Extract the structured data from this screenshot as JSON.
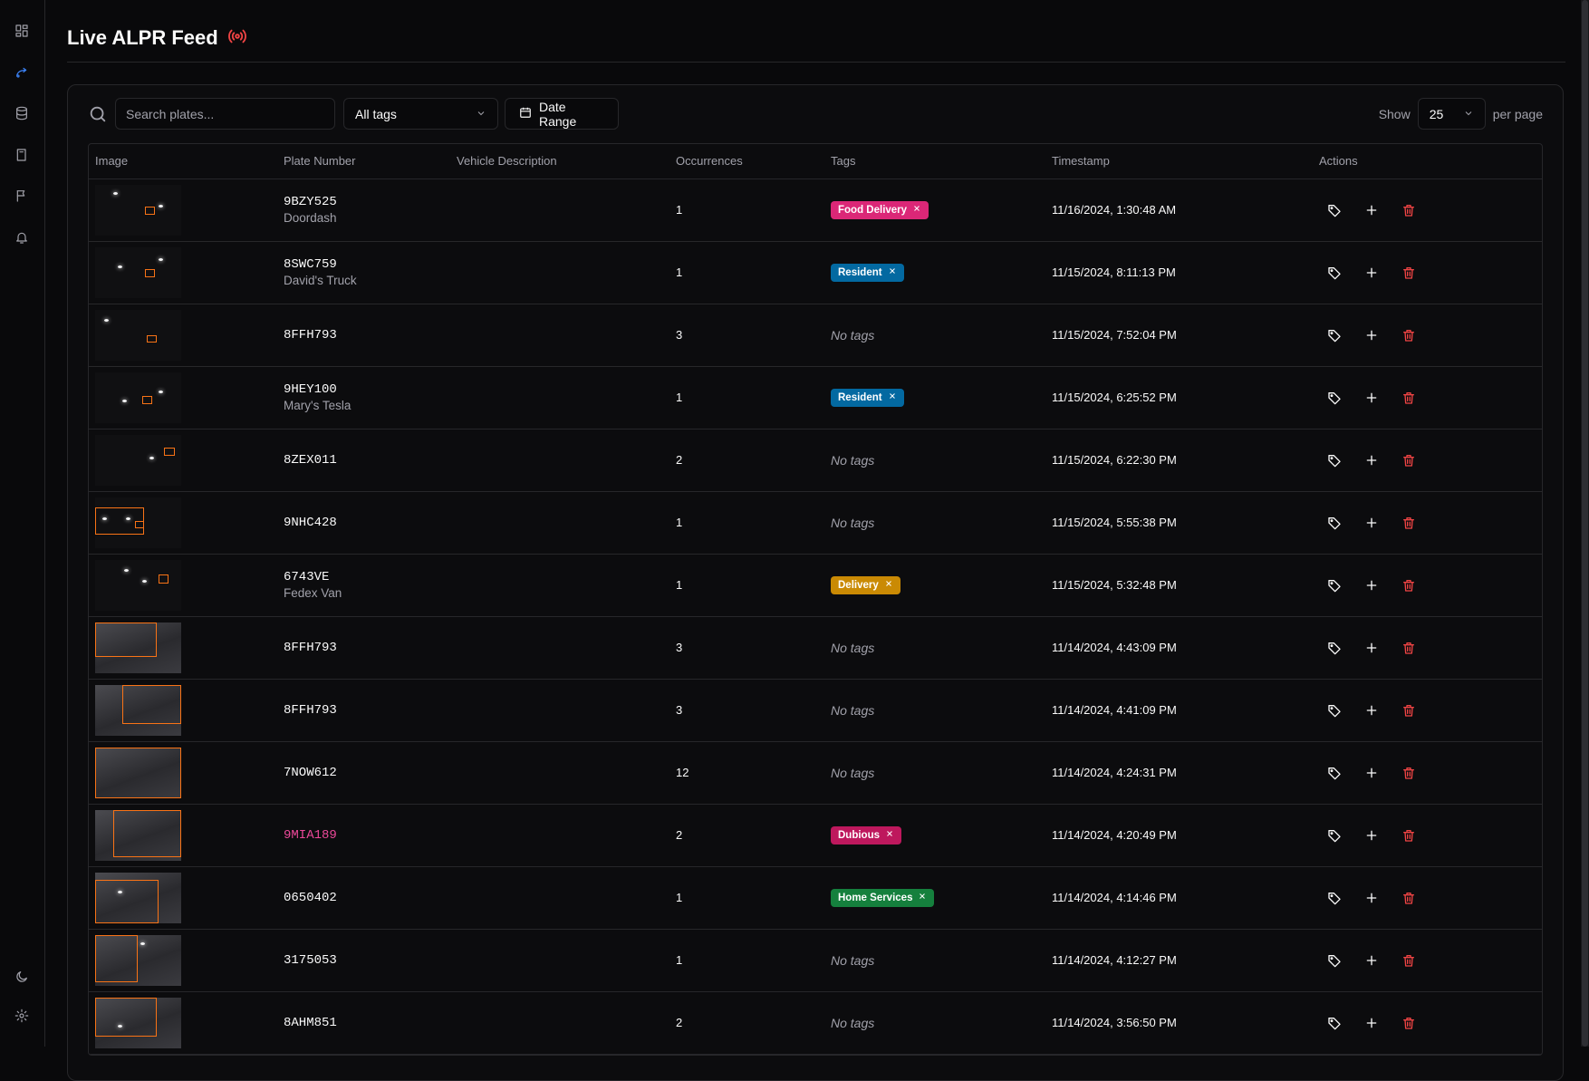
{
  "page": {
    "title": "Live ALPR Feed"
  },
  "sidebar": {
    "icons": [
      "dashboard-icon",
      "feed-icon",
      "database-icon",
      "book-icon",
      "flag-icon",
      "bell-icon",
      "moon-icon",
      "settings-icon"
    ]
  },
  "toolbar": {
    "search_placeholder": "Search plates...",
    "tag_filter": "All tags",
    "date_range": "Date Range",
    "show_label": "Show",
    "per_page_value": "25",
    "per_page_label": "per page"
  },
  "table": {
    "headers": [
      "Image",
      "Plate Number",
      "Vehicle Description",
      "Occurrences",
      "Tags",
      "Timestamp",
      "Actions"
    ],
    "no_tags_text": "No tags",
    "rows": [
      {
        "plate": "9BZY525",
        "nick": "Doordash",
        "occ": "1",
        "tag": "Food Delivery",
        "tag_color": "#db2777",
        "ts": "11/16/2024, 1:30:48 AM",
        "thumb": "dark"
      },
      {
        "plate": "8SWC759",
        "nick": "David's Truck",
        "occ": "1",
        "tag": "Resident",
        "tag_color": "#0369a1",
        "ts": "11/15/2024, 8:11:13 PM",
        "thumb": "dark"
      },
      {
        "plate": "8FFH793",
        "nick": "",
        "occ": "3",
        "tag": "",
        "tag_color": "",
        "ts": "11/15/2024, 7:52:04 PM",
        "thumb": "dark"
      },
      {
        "plate": "9HEY100",
        "nick": "Mary's Tesla",
        "occ": "1",
        "tag": "Resident",
        "tag_color": "#0369a1",
        "ts": "11/15/2024, 6:25:52 PM",
        "thumb": "dark"
      },
      {
        "plate": "8ZEX011",
        "nick": "",
        "occ": "2",
        "tag": "",
        "tag_color": "",
        "ts": "11/15/2024, 6:22:30 PM",
        "thumb": "dark"
      },
      {
        "plate": "9NHC428",
        "nick": "",
        "occ": "1",
        "tag": "",
        "tag_color": "",
        "ts": "11/15/2024, 5:55:38 PM",
        "thumb": "dark"
      },
      {
        "plate": "6743VE",
        "nick": "Fedex Van",
        "occ": "1",
        "tag": "Delivery",
        "tag_color": "#ca8a04",
        "ts": "11/15/2024, 5:32:48 PM",
        "thumb": "dark"
      },
      {
        "plate": "8FFH793",
        "nick": "",
        "occ": "3",
        "tag": "",
        "tag_color": "",
        "ts": "11/14/2024, 4:43:09 PM",
        "thumb": "gray"
      },
      {
        "plate": "8FFH793",
        "nick": "",
        "occ": "3",
        "tag": "",
        "tag_color": "",
        "ts": "11/14/2024, 4:41:09 PM",
        "thumb": "gray"
      },
      {
        "plate": "7NOW612",
        "nick": "",
        "occ": "12",
        "tag": "",
        "tag_color": "",
        "ts": "11/14/2024, 4:24:31 PM",
        "thumb": "gray"
      },
      {
        "plate": "9MIA189",
        "nick": "",
        "occ": "2",
        "tag": "Dubious",
        "tag_color": "#be185d",
        "ts": "11/14/2024, 4:20:49 PM",
        "thumb": "gray",
        "alert": true
      },
      {
        "plate": "0650402",
        "nick": "",
        "occ": "1",
        "tag": "Home Services",
        "tag_color": "#15803d",
        "ts": "11/14/2024, 4:14:46 PM",
        "thumb": "gray"
      },
      {
        "plate": "3175053",
        "nick": "",
        "occ": "1",
        "tag": "",
        "tag_color": "",
        "ts": "11/14/2024, 4:12:27 PM",
        "thumb": "gray"
      },
      {
        "plate": "8AHM851",
        "nick": "",
        "occ": "2",
        "tag": "",
        "tag_color": "",
        "ts": "11/14/2024, 3:56:50 PM",
        "thumb": "gray"
      }
    ]
  }
}
